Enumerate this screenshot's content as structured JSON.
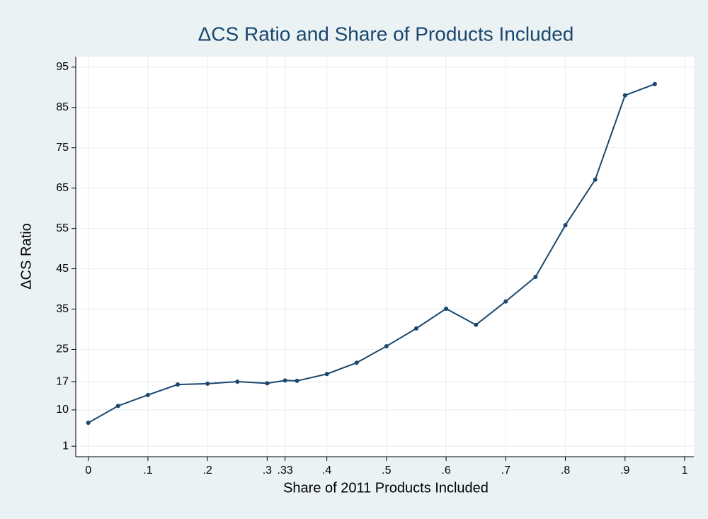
{
  "chart_data": {
    "type": "line",
    "title": "ΔCS Ratio and Share of Products Included",
    "x_label": "Share of 2011 Products Included",
    "y_label": "ΔCS Ratio",
    "x": [
      0,
      0.05,
      0.1,
      0.15,
      0.2,
      0.25,
      0.3,
      0.33,
      0.35,
      0.4,
      0.45,
      0.5,
      0.55,
      0.6,
      0.65,
      0.7,
      0.75,
      0.8,
      0.85,
      0.9,
      0.95
    ],
    "series": [
      {
        "color": "#1a476f",
        "values": [
          6.8,
          11.0,
          13.7,
          16.3,
          16.5,
          17.0,
          16.6,
          17.3,
          17.2,
          18.9,
          21.7,
          25.8,
          30.2,
          35.1,
          31.1,
          36.9,
          43.0,
          55.8,
          67.1,
          88.0,
          90.8
        ]
      }
    ],
    "xlim": [
      -0.021,
      1.0154
    ],
    "ylim": [
      -1.6,
      97.6
    ],
    "xticks": [
      0,
      {
        "value": 0.1,
        "label": ".1"
      },
      {
        "value": 0.2,
        "label": ".2"
      },
      {
        "value": 0.3,
        "label": ".3"
      },
      {
        "value": 0.33,
        "label": ".33"
      },
      {
        "value": 0.4,
        "label": ".4"
      },
      {
        "value": 0.5,
        "label": ".5"
      },
      {
        "value": 0.6,
        "label": ".6"
      },
      {
        "value": 0.7,
        "label": ".7"
      },
      {
        "value": 0.8,
        "label": ".8"
      },
      {
        "value": 0.9,
        "label": ".9"
      },
      1
    ],
    "yticks": [
      1,
      10,
      17,
      25,
      35,
      45,
      55,
      65,
      75,
      85,
      95
    ],
    "grid": true
  }
}
